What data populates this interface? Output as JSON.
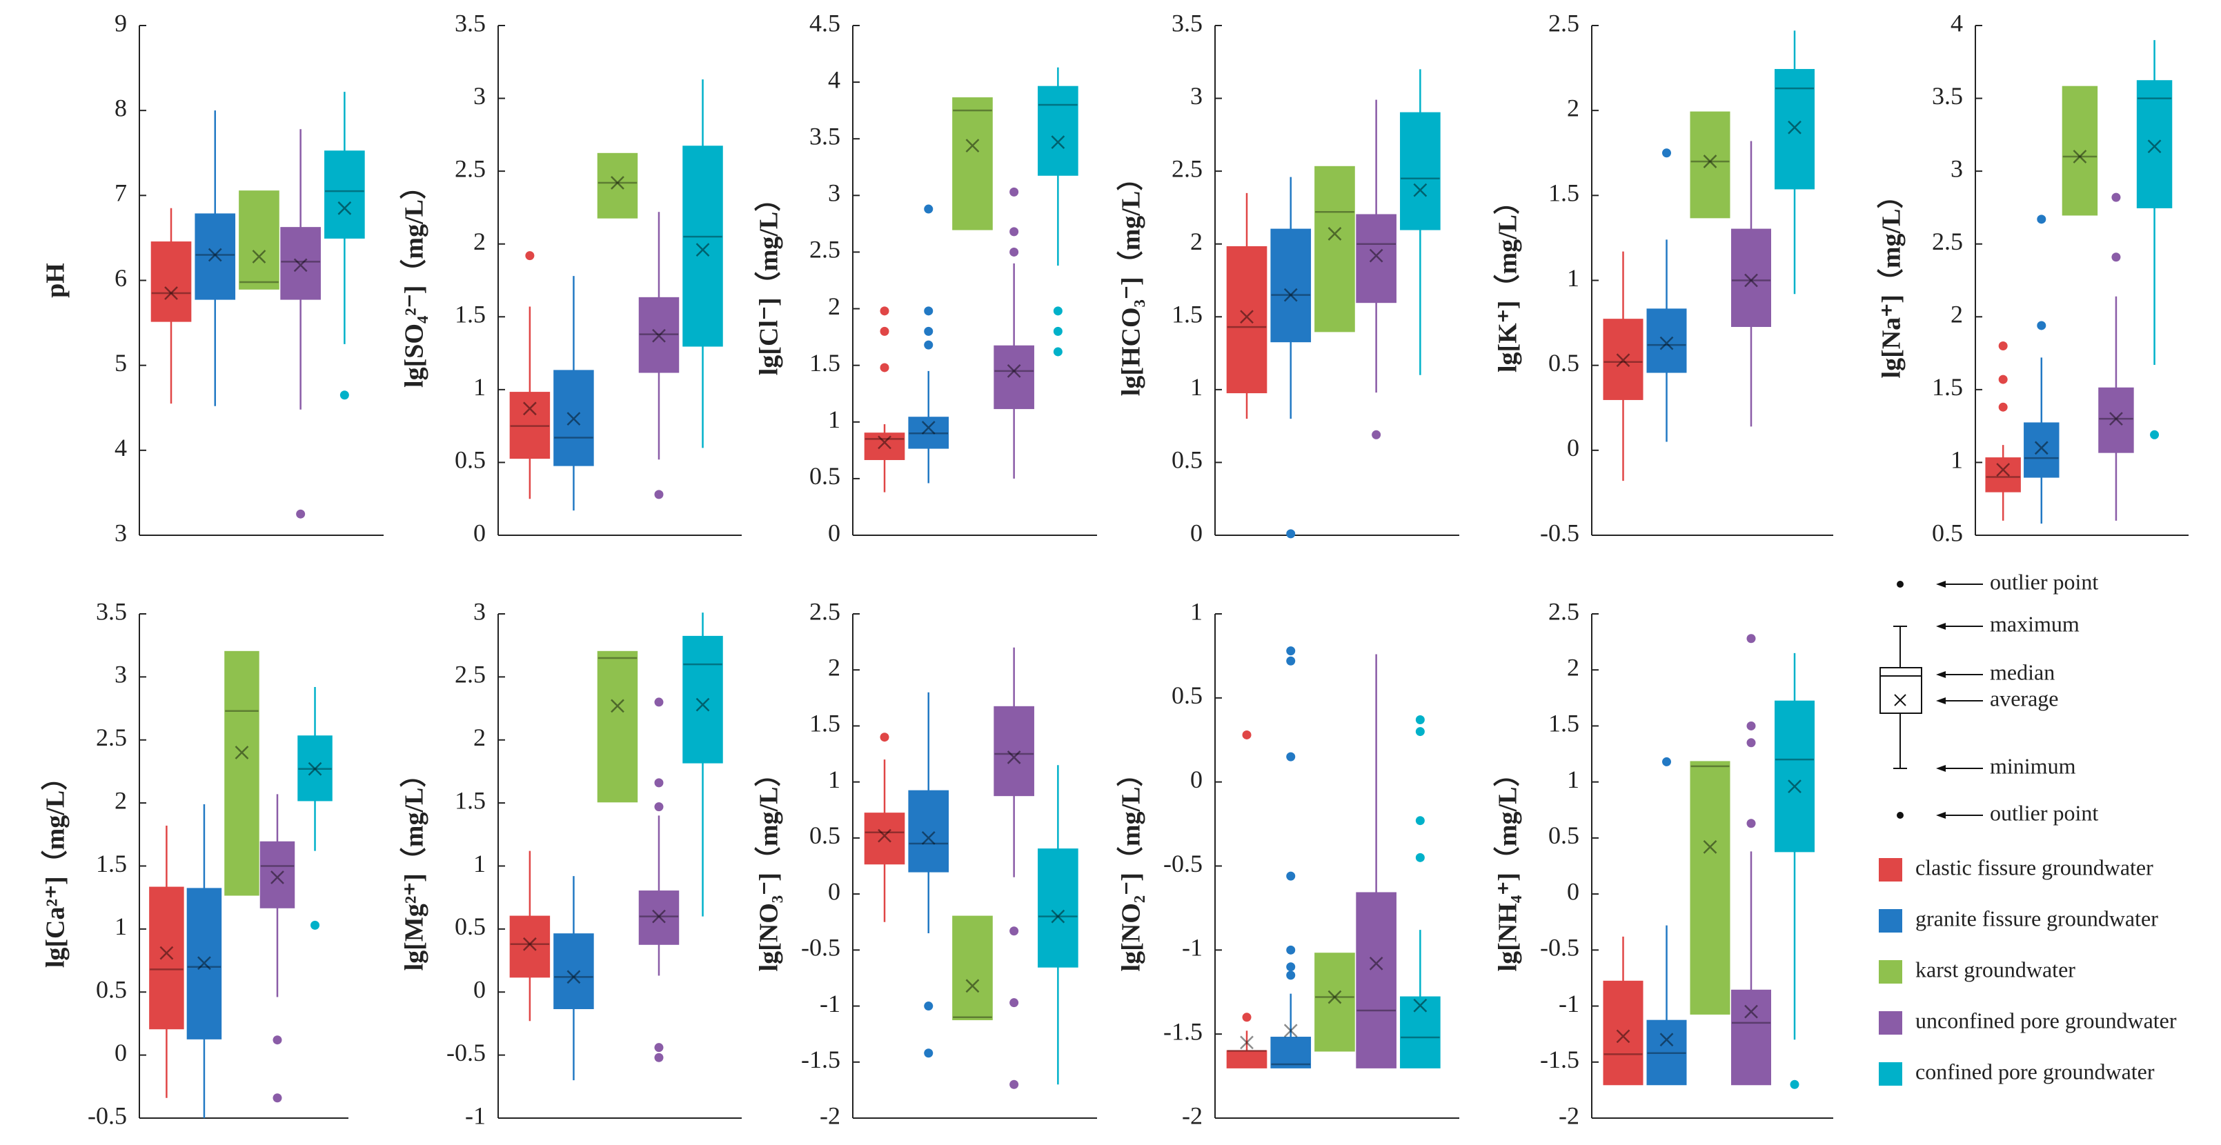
{
  "legend": {
    "items": [
      {
        "name": "clastic fissure groundwater",
        "color": "#e04646"
      },
      {
        "name": "granite fissure groundwater",
        "color": "#2279c4"
      },
      {
        "name": "karst groundwater",
        "color": "#8fc14e"
      },
      {
        "name": "unconfined pore groundwater",
        "color": "#8a5ca7"
      },
      {
        "name": "confined pore groundwater",
        "color": "#00b1c9"
      }
    ],
    "key": [
      "outlier point",
      "maximum",
      "median",
      "average",
      "minimum",
      "outlier point"
    ]
  },
  "chart_data": [
    {
      "type": "box",
      "ylabel": "pH",
      "ylim": [
        3,
        9
      ],
      "yticks": [
        3,
        4,
        5,
        6,
        7,
        8,
        9
      ],
      "boxes": [
        {
          "min": 4.55,
          "q1": 5.52,
          "median": 5.85,
          "q3": 6.45,
          "max": 6.85,
          "mean": 5.85,
          "outliers": []
        },
        {
          "min": 4.52,
          "q1": 5.78,
          "median": 6.3,
          "q3": 6.78,
          "max": 8.0,
          "mean": 6.3,
          "outliers": []
        },
        {
          "min": 5.9,
          "q1": 5.9,
          "median": 5.98,
          "q3": 7.05,
          "max": 7.05,
          "mean": 6.28,
          "outliers": []
        },
        {
          "min": 4.48,
          "q1": 5.78,
          "median": 6.22,
          "q3": 6.62,
          "max": 7.78,
          "mean": 6.18,
          "outliers": [
            3.25
          ]
        },
        {
          "min": 5.25,
          "q1": 6.5,
          "median": 7.05,
          "q3": 7.52,
          "max": 8.22,
          "mean": 6.85,
          "outliers": [
            4.65
          ]
        }
      ]
    },
    {
      "type": "box",
      "ylabel": "lg[SO₄²⁻]（mg/L）",
      "ylim": [
        0,
        3.5
      ],
      "yticks": [
        0,
        0.5,
        1,
        1.5,
        2,
        2.5,
        3,
        3.5
      ],
      "boxes": [
        {
          "min": 0.25,
          "q1": 0.53,
          "median": 0.75,
          "q3": 0.98,
          "max": 1.57,
          "mean": 0.87,
          "outliers": [
            1.92
          ]
        },
        {
          "min": 0.17,
          "q1": 0.48,
          "median": 0.67,
          "q3": 1.13,
          "max": 1.78,
          "mean": 0.8,
          "outliers": []
        },
        {
          "min": 2.18,
          "q1": 2.18,
          "median": 2.42,
          "q3": 2.62,
          "max": 2.62,
          "mean": 2.42,
          "outliers": []
        },
        {
          "min": 0.52,
          "q1": 1.12,
          "median": 1.38,
          "q3": 1.63,
          "max": 2.22,
          "mean": 1.37,
          "outliers": [
            0.28
          ]
        },
        {
          "min": 0.6,
          "q1": 1.3,
          "median": 2.05,
          "q3": 2.67,
          "max": 3.13,
          "mean": 1.96,
          "outliers": []
        }
      ]
    },
    {
      "type": "box",
      "ylabel": "lg[Cl⁻]（mg/L）",
      "ylim": [
        0,
        4.5
      ],
      "yticks": [
        0,
        0.5,
        1,
        1.5,
        2,
        2.5,
        3,
        3.5,
        4,
        4.5
      ],
      "boxes": [
        {
          "min": 0.38,
          "q1": 0.67,
          "median": 0.85,
          "q3": 0.9,
          "max": 0.98,
          "mean": 0.82,
          "outliers": [
            1.48,
            1.8,
            1.98
          ]
        },
        {
          "min": 0.46,
          "q1": 0.77,
          "median": 0.9,
          "q3": 1.04,
          "max": 1.45,
          "mean": 0.95,
          "outliers": [
            1.68,
            1.8,
            1.98,
            2.88
          ]
        },
        {
          "min": 2.7,
          "q1": 2.7,
          "median": 3.75,
          "q3": 3.86,
          "max": 3.86,
          "mean": 3.44,
          "outliers": []
        },
        {
          "min": 0.5,
          "q1": 1.12,
          "median": 1.45,
          "q3": 1.67,
          "max": 2.4,
          "mean": 1.45,
          "outliers": [
            2.5,
            2.68,
            3.03
          ]
        },
        {
          "min": 2.38,
          "q1": 3.18,
          "median": 3.8,
          "q3": 3.96,
          "max": 4.13,
          "mean": 3.47,
          "outliers": [
            1.62,
            1.8,
            1.98
          ]
        }
      ]
    },
    {
      "type": "box",
      "ylabel": "lg[HCO₃⁻]（mg/L）",
      "ylim": [
        0,
        3.5
      ],
      "yticks": [
        0,
        0.5,
        1,
        1.5,
        2,
        2.5,
        3,
        3.5
      ],
      "boxes": [
        {
          "min": 0.8,
          "q1": 0.98,
          "median": 1.43,
          "q3": 1.98,
          "max": 2.35,
          "mean": 1.5,
          "outliers": []
        },
        {
          "min": 0.8,
          "q1": 1.33,
          "median": 1.65,
          "q3": 2.1,
          "max": 2.46,
          "mean": 1.65,
          "outliers": [
            0.01
          ]
        },
        {
          "min": 1.4,
          "q1": 1.4,
          "median": 2.22,
          "q3": 2.53,
          "max": 2.53,
          "mean": 2.07,
          "outliers": []
        },
        {
          "min": 0.98,
          "q1": 1.6,
          "median": 2.0,
          "q3": 2.2,
          "max": 2.99,
          "mean": 1.92,
          "outliers": [
            0.69
          ]
        },
        {
          "min": 1.1,
          "q1": 2.1,
          "median": 2.45,
          "q3": 2.9,
          "max": 3.2,
          "mean": 2.37,
          "outliers": []
        }
      ]
    },
    {
      "type": "box",
      "ylabel": "lg[K⁺]（mg/L）",
      "ylim": [
        -0.5,
        2.5
      ],
      "yticks": [
        -0.5,
        0,
        0.5,
        1,
        1.5,
        2,
        2.5
      ],
      "boxes": [
        {
          "min": -0.18,
          "q1": 0.3,
          "median": 0.52,
          "q3": 0.77,
          "max": 1.17,
          "mean": 0.53,
          "outliers": []
        },
        {
          "min": 0.05,
          "q1": 0.46,
          "median": 0.62,
          "q3": 0.83,
          "max": 1.24,
          "mean": 0.63,
          "outliers": [
            1.75
          ]
        },
        {
          "min": 1.37,
          "q1": 1.37,
          "median": 1.7,
          "q3": 1.99,
          "max": 1.99,
          "mean": 1.7,
          "outliers": []
        },
        {
          "min": 0.14,
          "q1": 0.73,
          "median": 1.0,
          "q3": 1.3,
          "max": 1.82,
          "mean": 1.0,
          "outliers": []
        },
        {
          "min": 0.92,
          "q1": 1.54,
          "median": 2.13,
          "q3": 2.24,
          "max": 2.47,
          "mean": 1.9,
          "outliers": []
        }
      ]
    },
    {
      "type": "box",
      "ylabel": "lg[Na⁺]（mg/L）",
      "ylim": [
        0.5,
        4
      ],
      "yticks": [
        0.5,
        1,
        1.5,
        2,
        2.5,
        3,
        3.5,
        4
      ],
      "boxes": [
        {
          "min": 0.6,
          "q1": 0.8,
          "median": 0.9,
          "q3": 1.03,
          "max": 1.12,
          "mean": 0.95,
          "outliers": [
            1.38,
            1.57,
            1.8
          ]
        },
        {
          "min": 0.58,
          "q1": 0.9,
          "median": 1.03,
          "q3": 1.27,
          "max": 1.72,
          "mean": 1.1,
          "outliers": [
            1.94,
            2.67
          ]
        },
        {
          "min": 2.7,
          "q1": 2.7,
          "median": 3.1,
          "q3": 3.58,
          "max": 3.58,
          "mean": 3.1,
          "outliers": []
        },
        {
          "min": 0.6,
          "q1": 1.07,
          "median": 1.3,
          "q3": 1.51,
          "max": 2.14,
          "mean": 1.3,
          "outliers": [
            2.41,
            2.82
          ]
        },
        {
          "min": 1.67,
          "q1": 2.75,
          "median": 3.5,
          "q3": 3.62,
          "max": 3.9,
          "mean": 3.17,
          "outliers": [
            1.19
          ]
        }
      ]
    },
    {
      "type": "box",
      "ylabel": "lg[Ca²⁺]（mg/L）",
      "ylim": [
        -0.5,
        3.5
      ],
      "yticks": [
        -0.5,
        0,
        0.5,
        1,
        1.5,
        2,
        2.5,
        3,
        3.5
      ],
      "boxes": [
        {
          "min": -0.34,
          "q1": 0.21,
          "median": 0.68,
          "q3": 1.33,
          "max": 1.82,
          "mean": 0.81,
          "outliers": []
        },
        {
          "min": -0.5,
          "q1": 0.13,
          "median": 0.7,
          "q3": 1.32,
          "max": 1.99,
          "mean": 0.73,
          "outliers": []
        },
        {
          "min": 1.27,
          "q1": 1.27,
          "median": 2.73,
          "q3": 3.2,
          "max": 3.2,
          "mean": 2.4,
          "outliers": []
        },
        {
          "min": 0.46,
          "q1": 1.17,
          "median": 1.5,
          "q3": 1.69,
          "max": 2.07,
          "mean": 1.41,
          "outliers": [
            0.12,
            -0.34
          ]
        },
        {
          "min": 1.62,
          "q1": 2.02,
          "median": 2.27,
          "q3": 2.53,
          "max": 2.92,
          "mean": 2.27,
          "outliers": [
            1.03
          ]
        }
      ]
    },
    {
      "type": "box",
      "ylabel": "lg[Mg²⁺]（mg/L）",
      "ylim": [
        -1,
        3
      ],
      "yticks": [
        -1,
        -0.5,
        0,
        0.5,
        1,
        1.5,
        2,
        2.5,
        3
      ],
      "boxes": [
        {
          "min": -0.23,
          "q1": 0.12,
          "median": 0.38,
          "q3": 0.6,
          "max": 1.12,
          "mean": 0.38,
          "outliers": []
        },
        {
          "min": -0.7,
          "q1": -0.13,
          "median": 0.12,
          "q3": 0.46,
          "max": 0.92,
          "mean": 0.12,
          "outliers": []
        },
        {
          "min": 1.51,
          "q1": 1.51,
          "median": 2.65,
          "q3": 2.7,
          "max": 2.7,
          "mean": 2.27,
          "outliers": []
        },
        {
          "min": 0.13,
          "q1": 0.38,
          "median": 0.6,
          "q3": 0.8,
          "max": 1.4,
          "mean": 0.6,
          "outliers": [
            1.47,
            1.66,
            2.3,
            -0.44,
            -0.52
          ]
        },
        {
          "min": 0.6,
          "q1": 1.82,
          "median": 2.6,
          "q3": 2.82,
          "max": 3.01,
          "mean": 2.28,
          "outliers": []
        }
      ]
    },
    {
      "type": "box",
      "ylabel": "lg[NO₃⁻]（mg/L）",
      "ylim": [
        -2,
        2.5
      ],
      "yticks": [
        -2,
        -1.5,
        -1,
        -0.5,
        0,
        0.5,
        1,
        1.5,
        2,
        2.5
      ],
      "boxes": [
        {
          "min": -0.25,
          "q1": 0.27,
          "median": 0.55,
          "q3": 0.72,
          "max": 1.2,
          "mean": 0.52,
          "outliers": [
            1.4
          ]
        },
        {
          "min": -0.35,
          "q1": 0.2,
          "median": 0.45,
          "q3": 0.92,
          "max": 1.8,
          "mean": 0.5,
          "outliers": [
            -1.0,
            -1.42
          ]
        },
        {
          "min": -1.12,
          "q1": -1.12,
          "median": -1.1,
          "q3": -0.2,
          "max": -0.2,
          "mean": -0.82,
          "outliers": []
        },
        {
          "min": 0.15,
          "q1": 0.88,
          "median": 1.25,
          "q3": 1.67,
          "max": 2.2,
          "mean": 1.22,
          "outliers": [
            -0.33,
            -0.97,
            -1.7
          ]
        },
        {
          "min": -1.7,
          "q1": -0.65,
          "median": -0.2,
          "q3": 0.4,
          "max": 1.15,
          "mean": -0.2,
          "outliers": []
        }
      ]
    },
    {
      "type": "box",
      "ylabel": "lg[NO₂⁻]（mg/L）",
      "ylim": [
        -2,
        1
      ],
      "yticks": [
        -2,
        -1.5,
        -1,
        -0.5,
        0,
        0.5,
        1
      ],
      "boxes": [
        {
          "min": -1.7,
          "q1": -1.7,
          "median": -1.6,
          "q3": -1.6,
          "max": -1.48,
          "mean": -1.55,
          "outliers": [
            -1.4,
            0.28
          ]
        },
        {
          "min": -1.7,
          "q1": -1.7,
          "median": -1.68,
          "q3": -1.52,
          "max": -1.26,
          "mean": -1.48,
          "outliers": [
            -1.15,
            -1.1,
            -1.0,
            -0.56,
            0.15,
            0.72,
            0.78
          ]
        },
        {
          "min": -1.6,
          "q1": -1.6,
          "median": -1.28,
          "q3": -1.02,
          "max": -1.02,
          "mean": -1.28,
          "outliers": []
        },
        {
          "min": -1.7,
          "q1": -1.7,
          "median": -1.36,
          "q3": -0.66,
          "max": 0.76,
          "mean": -1.08,
          "outliers": []
        },
        {
          "min": -1.7,
          "q1": -1.7,
          "median": -1.52,
          "q3": -1.28,
          "max": -0.88,
          "mean": -1.33,
          "outliers": [
            -0.45,
            -0.23,
            0.3,
            0.37
          ]
        }
      ]
    },
    {
      "type": "box",
      "ylabel": "lg[NH₄⁺]（mg/L）",
      "ylim": [
        -2,
        2.5
      ],
      "yticks": [
        -2,
        -1.5,
        -1,
        -0.5,
        0,
        0.5,
        1,
        1.5,
        2,
        2.5
      ],
      "boxes": [
        {
          "min": -1.7,
          "q1": -1.7,
          "median": -1.43,
          "q3": -0.78,
          "max": -0.38,
          "mean": -1.27,
          "outliers": []
        },
        {
          "min": -1.7,
          "q1": -1.7,
          "median": -1.42,
          "q3": -1.13,
          "max": -0.28,
          "mean": -1.3,
          "outliers": [
            1.18
          ]
        },
        {
          "min": -1.07,
          "q1": -1.07,
          "median": 1.14,
          "q3": 1.18,
          "max": 1.18,
          "mean": 0.42,
          "outliers": []
        },
        {
          "min": -1.7,
          "q1": -1.7,
          "median": -1.15,
          "q3": -0.86,
          "max": 0.38,
          "mean": -1.05,
          "outliers": [
            0.63,
            1.35,
            1.5,
            2.28
          ]
        },
        {
          "min": -1.3,
          "q1": 0.38,
          "median": 1.2,
          "q3": 1.72,
          "max": 2.15,
          "mean": 0.96,
          "outliers": [
            -1.7
          ]
        }
      ]
    }
  ]
}
